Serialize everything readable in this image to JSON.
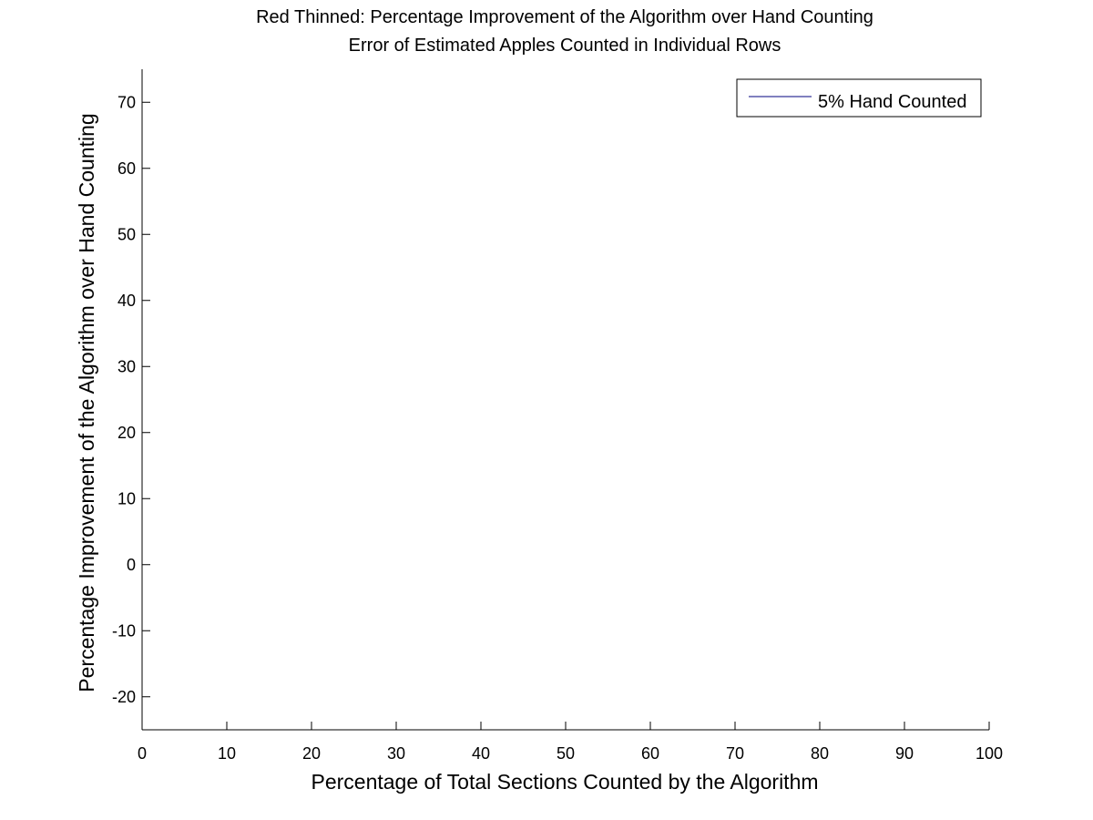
{
  "chart_data": {
    "type": "line",
    "title_line1": "Red Thinned: Percentage Improvement of the Algorithm over Hand Counting",
    "title_line2": "Error of Estimated Apples Counted in Individual Rows",
    "xlabel": "Percentage of Total Sections Counted by the Algorithm",
    "ylabel": "Percentage Improvement of the Algorithm over Hand Counting",
    "xlim": [
      0,
      100
    ],
    "ylim": [
      -25,
      75
    ],
    "xticks": [
      0,
      10,
      20,
      30,
      40,
      50,
      60,
      70,
      80,
      90,
      100
    ],
    "yticks": [
      -20,
      -10,
      0,
      10,
      20,
      30,
      40,
      50,
      60,
      70
    ],
    "grid": false,
    "legend_position": "top-right",
    "series": [
      {
        "name": "5% Hand Counted",
        "color": "#00007f",
        "x": [],
        "y": []
      }
    ]
  }
}
